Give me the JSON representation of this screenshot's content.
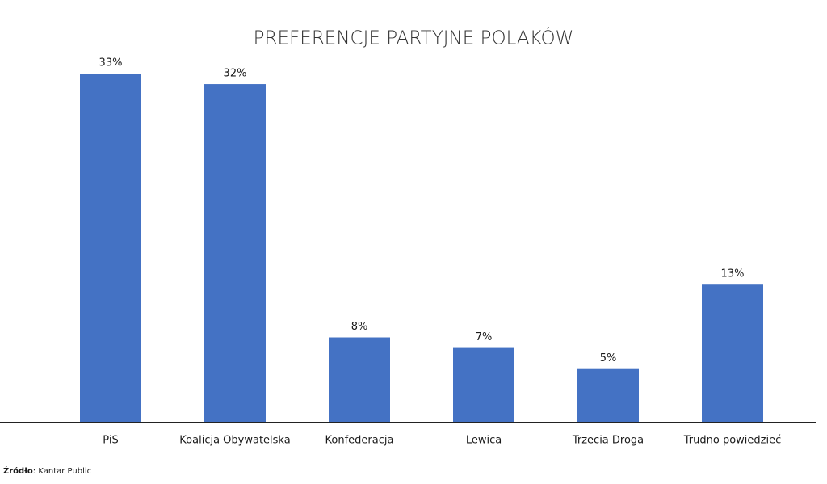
{
  "chart_data": {
    "type": "bar",
    "title": "PREFERENCJE PARTYJNE POLAKÓW",
    "categories": [
      "PiS",
      "Koalicja Obywatelska",
      "Konfederacja",
      "Lewica",
      "Trzecia Droga",
      "Trudno powiedzieć"
    ],
    "values": [
      33,
      32,
      8,
      7,
      5,
      13
    ],
    "value_labels": [
      "33%",
      "32%",
      "8%",
      "7%",
      "5%",
      "13%"
    ],
    "color": "#4472c4",
    "source_label": "Źródło",
    "source_text": ": Kantar Public"
  }
}
